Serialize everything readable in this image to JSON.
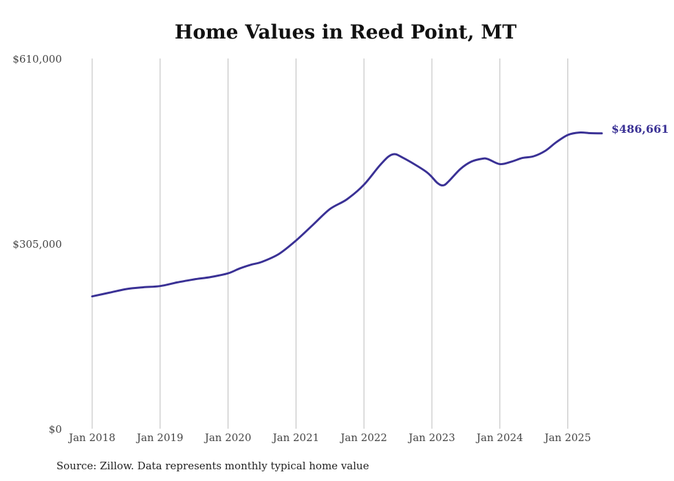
{
  "title": "Home Values in Reed Point, MT",
  "source": "Source: Zillow. Data represents monthly typical home value",
  "colors": {
    "line": "#3a3195",
    "grid": "#bbbbbb",
    "end_label": "#3a3195"
  },
  "chart_data": {
    "type": "line",
    "title": "Home Values in Reed Point, MT",
    "xlabel": "",
    "ylabel": "",
    "ylim": [
      0,
      610000
    ],
    "yticks": [
      {
        "value": 0,
        "label": "$0"
      },
      {
        "value": 305000,
        "label": "$305,000"
      },
      {
        "value": 610000,
        "label": "$610,000"
      }
    ],
    "xticks": [
      {
        "value": 2018.0,
        "label": "Jan 2018"
      },
      {
        "value": 2019.0,
        "label": "Jan 2019"
      },
      {
        "value": 2020.0,
        "label": "Jan 2020"
      },
      {
        "value": 2021.0,
        "label": "Jan 2021"
      },
      {
        "value": 2022.0,
        "label": "Jan 2022"
      },
      {
        "value": 2023.0,
        "label": "Jan 2023"
      },
      {
        "value": 2024.0,
        "label": "Jan 2024"
      },
      {
        "value": 2025.0,
        "label": "Jan 2025"
      }
    ],
    "xlim": [
      2018.0,
      2025.5
    ],
    "grid": {
      "vertical": true,
      "horizontal": false
    },
    "end_label": "$486,661",
    "series": [
      {
        "x": [
          2018.0,
          2018.25,
          2018.5,
          2018.75,
          2019.0,
          2019.25,
          2019.5,
          2019.75,
          2020.0,
          2020.17,
          2020.33,
          2020.5,
          2020.75,
          2021.0,
          2021.25,
          2021.5,
          2021.75,
          2022.0,
          2022.25,
          2022.42,
          2022.58,
          2022.92,
          2023.08,
          2023.17,
          2023.25,
          2023.42,
          2023.58,
          2023.75,
          2023.83,
          2024.0,
          2024.17,
          2024.33,
          2024.5,
          2024.67,
          2024.83,
          2025.0,
          2025.17,
          2025.33,
          2025.5
        ],
        "y": [
          218000,
          224000,
          230000,
          233000,
          235000,
          241000,
          246000,
          250000,
          256000,
          264000,
          270000,
          275000,
          288000,
          310000,
          336000,
          362000,
          378000,
          402000,
          436000,
          452000,
          446000,
          423000,
          405000,
          401000,
          408000,
          428000,
          440000,
          445000,
          444000,
          436000,
          440000,
          446000,
          449000,
          458000,
          472000,
          484000,
          488000,
          487000,
          486661
        ]
      }
    ]
  }
}
